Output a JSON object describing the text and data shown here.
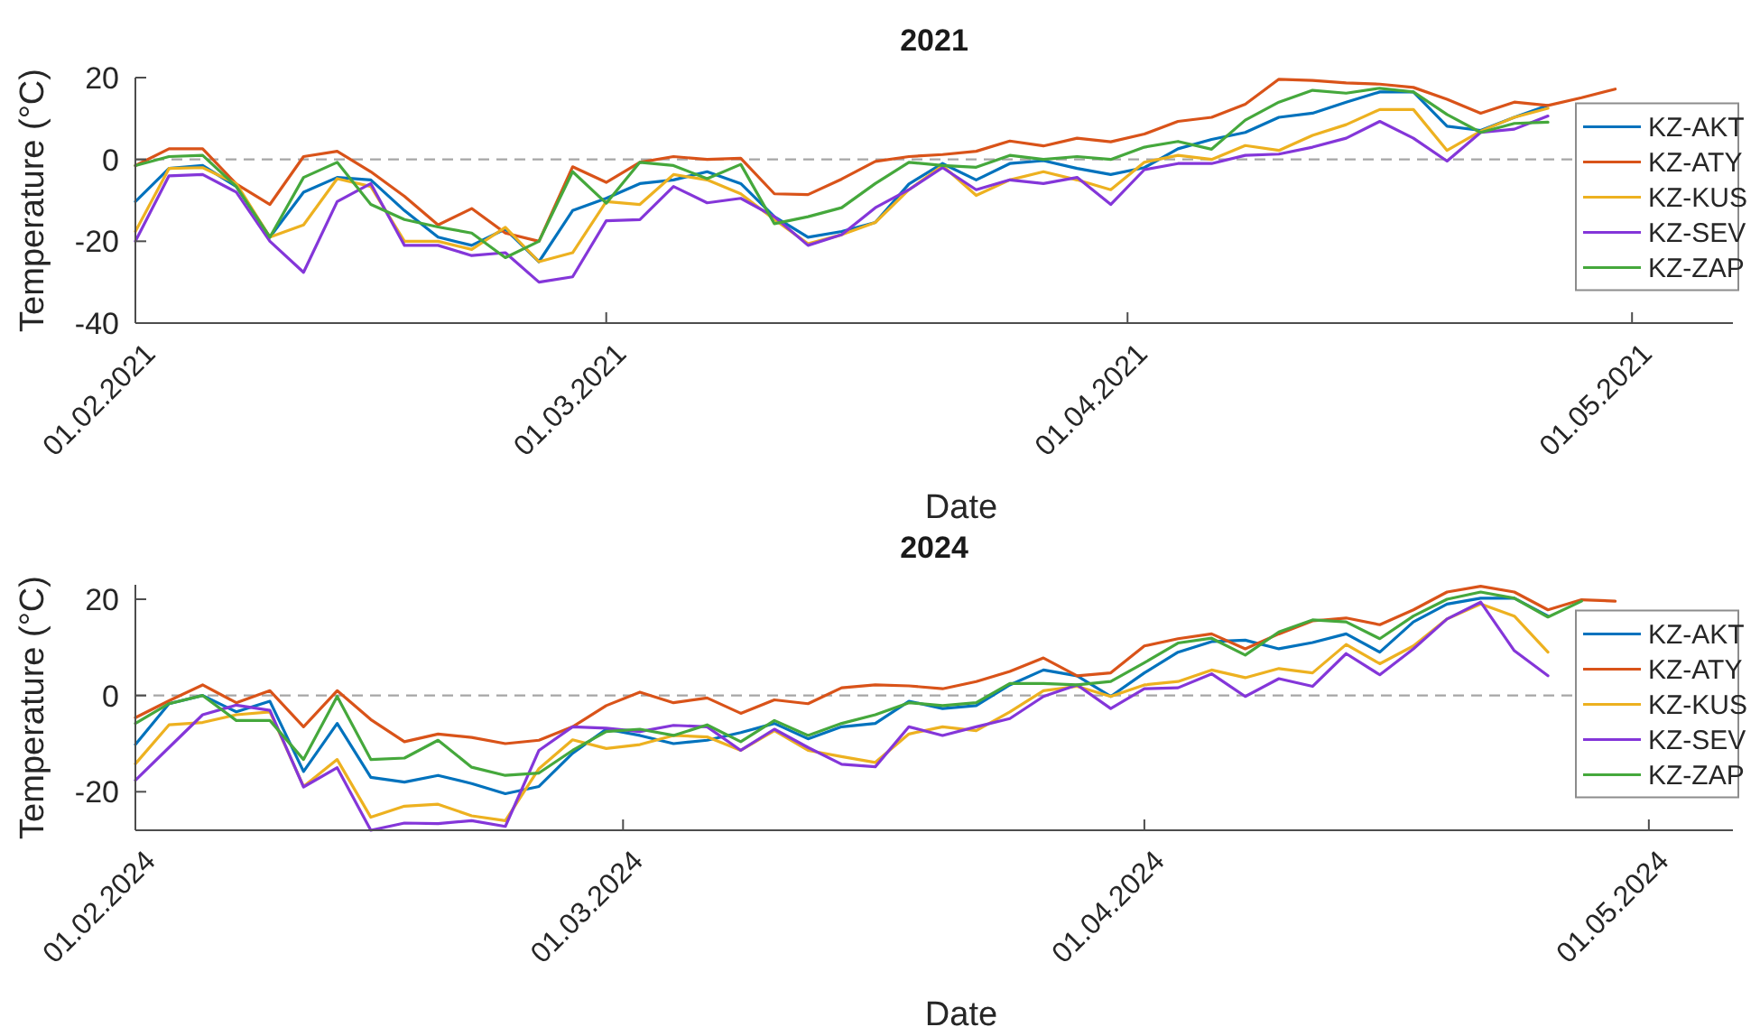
{
  "chart_data": [
    {
      "type": "line",
      "title": "2021",
      "xlabel": "Date",
      "ylabel": "Temperature (°C)",
      "x": [
        "2021-02-01",
        "2021-02-03",
        "2021-02-05",
        "2021-02-07",
        "2021-02-09",
        "2021-02-11",
        "2021-02-13",
        "2021-02-15",
        "2021-02-17",
        "2021-02-19",
        "2021-02-21",
        "2021-02-23",
        "2021-02-25",
        "2021-02-27",
        "2021-03-01",
        "2021-03-03",
        "2021-03-05",
        "2021-03-07",
        "2021-03-09",
        "2021-03-11",
        "2021-03-13",
        "2021-03-15",
        "2021-03-17",
        "2021-03-19",
        "2021-03-21",
        "2021-03-23",
        "2021-03-25",
        "2021-03-27",
        "2021-03-29",
        "2021-03-31",
        "2021-04-02",
        "2021-04-04",
        "2021-04-06",
        "2021-04-08",
        "2021-04-10",
        "2021-04-12",
        "2021-04-14",
        "2021-04-16",
        "2021-04-18",
        "2021-04-20",
        "2021-04-22",
        "2021-04-24",
        "2021-04-26",
        "2021-04-28",
        "2021-04-30"
      ],
      "series": [
        {
          "name": "KZ-AKT",
          "color": "#0072bd",
          "values": [
            -10.3,
            -2.2,
            -1.5,
            -6.6,
            -19,
            -8,
            -4.4,
            -5,
            -12.5,
            -19,
            -21,
            -17,
            -25,
            -12.5,
            -9.5,
            -5.9,
            -5,
            -3,
            -5.9,
            -14,
            -19,
            -17.6,
            -15.4,
            -6,
            -1,
            -5,
            -1,
            -0.3,
            -2.2,
            -3.7,
            -2,
            2.6,
            4.9,
            6.6,
            10.3,
            11.3,
            14,
            16.5,
            16.5,
            8.1,
            7.1,
            10.3,
            13.2,
            null,
            null
          ]
        },
        {
          "name": "KZ-ATY",
          "color": "#d95319",
          "values": [
            -1.5,
            2.6,
            2.6,
            -6,
            -11,
            0.7,
            2,
            -3,
            -9,
            -16,
            -12,
            -18,
            -20,
            -1.8,
            -5.6,
            -0.7,
            0.7,
            0,
            0.3,
            -8.4,
            -8.6,
            -4.8,
            -0.5,
            0.7,
            1.2,
            2,
            4.5,
            3.3,
            5.2,
            4.3,
            6.2,
            9.3,
            10.3,
            13.5,
            19.6,
            19.3,
            18.7,
            18.4,
            17.6,
            14.7,
            11.3,
            14,
            13.2,
            15.1,
            17.2
          ]
        },
        {
          "name": "KZ-KUS",
          "color": "#edb120",
          "values": [
            -17.6,
            -2.2,
            -2,
            -5.9,
            -19,
            -16,
            -4.7,
            -6.6,
            -20,
            -20,
            -22,
            -16.6,
            -25,
            -22.8,
            -10.3,
            -11,
            -3.7,
            -5,
            -8.4,
            -14.7,
            -20.6,
            -18.4,
            -15.4,
            -7.4,
            -1.5,
            -8.8,
            -5,
            -3,
            -5,
            -7.4,
            -0.7,
            1,
            0,
            3.4,
            2.2,
            5.9,
            8.5,
            12.2,
            12.2,
            2.2,
            6.9,
            10.3,
            12.5,
            null,
            null
          ]
        },
        {
          "name": "KZ-SEV",
          "color": "#8436d9",
          "values": [
            -20,
            -4,
            -3.7,
            -8,
            -20,
            -27.6,
            -10.3,
            -5.9,
            -21,
            -21,
            -23.5,
            -22.8,
            -30,
            -28.7,
            -15,
            -14.7,
            -6.6,
            -10.6,
            -9.5,
            -14,
            -21,
            -18.4,
            -11.8,
            -7.4,
            -2,
            -7.4,
            -5,
            -5.9,
            -4.4,
            -11,
            -2.5,
            -1,
            -1,
            1,
            1.3,
            3,
            5.2,
            9.3,
            5.2,
            -0.4,
            6.6,
            7.4,
            10.6,
            null,
            null
          ]
        },
        {
          "name": "KZ-ZAP",
          "color": "#45a83c",
          "values": [
            -1.5,
            0.7,
            1,
            -6.6,
            -19,
            -4.4,
            -0.7,
            -11,
            -14.7,
            -16.5,
            -18,
            -24,
            -20,
            -3,
            -10.7,
            -0.7,
            -1.5,
            -4.7,
            -1.2,
            -15.7,
            -14,
            -11.8,
            -5.9,
            -0.7,
            -1.5,
            -1.9,
            1,
            0,
            0.7,
            0,
            3,
            4.4,
            2.5,
            9.6,
            14,
            16.9,
            16.2,
            17.4,
            16.5,
            11,
            6.6,
            8.8,
            9.1,
            null,
            null
          ]
        }
      ],
      "xlim": [
        "2021-02-01",
        "2021-05-07"
      ],
      "xticks": [
        {
          "value": "2021-02-01",
          "label": "01.02.2021"
        },
        {
          "value": "2021-03-01",
          "label": "01.03.2021"
        },
        {
          "value": "2021-04-01",
          "label": "01.04.2021"
        },
        {
          "value": "2021-05-01",
          "label": "01.05.2021"
        }
      ],
      "ylim": [
        -40,
        20
      ],
      "yticks": [
        -40,
        -20,
        0,
        20
      ],
      "ref_lines": [
        {
          "axis": "y",
          "value": 0,
          "color": "#a6a6a6",
          "line_style": "dashed"
        }
      ],
      "legend": "right",
      "grid": false
    },
    {
      "type": "line",
      "title": "2024",
      "xlabel": "Date",
      "ylabel": "Temperature (°C)",
      "x": [
        "2024-02-01",
        "2024-02-03",
        "2024-02-05",
        "2024-02-07",
        "2024-02-09",
        "2024-02-11",
        "2024-02-13",
        "2024-02-15",
        "2024-02-17",
        "2024-02-19",
        "2024-02-21",
        "2024-02-23",
        "2024-02-25",
        "2024-02-27",
        "2024-02-29",
        "2024-03-02",
        "2024-03-04",
        "2024-03-06",
        "2024-03-08",
        "2024-03-10",
        "2024-03-12",
        "2024-03-14",
        "2024-03-16",
        "2024-03-18",
        "2024-03-20",
        "2024-03-22",
        "2024-03-24",
        "2024-03-26",
        "2024-03-28",
        "2024-03-30",
        "2024-04-01",
        "2024-04-03",
        "2024-04-05",
        "2024-04-07",
        "2024-04-09",
        "2024-04-11",
        "2024-04-13",
        "2024-04-15",
        "2024-04-17",
        "2024-04-19",
        "2024-04-21",
        "2024-04-23",
        "2024-04-25",
        "2024-04-27",
        "2024-04-29"
      ],
      "series": [
        {
          "name": "KZ-AKT",
          "color": "#0072bd",
          "values": [
            -10.2,
            -1.7,
            0,
            -3.4,
            -1.2,
            -15.8,
            -5.8,
            -17,
            -18,
            -16.6,
            -18.3,
            -20.4,
            -18.9,
            -12,
            -7,
            -8.3,
            -10,
            -9.3,
            -7.7,
            -5.8,
            -9,
            -6.5,
            -5.8,
            -1.2,
            -2.7,
            -2.1,
            2.2,
            5.3,
            4.1,
            -0.2,
            4.7,
            9,
            11.2,
            11.5,
            9.7,
            11,
            12.8,
            9,
            15.3,
            19,
            20.2,
            20.2,
            16.5,
            null,
            null
          ]
        },
        {
          "name": "KZ-ATY",
          "color": "#d95319",
          "values": [
            -4.6,
            -1.1,
            2.2,
            -1.5,
            1,
            -6.5,
            1,
            -5,
            -9.6,
            -8,
            -8.7,
            -10,
            -9.3,
            -6.5,
            -2.1,
            0.7,
            -1.5,
            -0.5,
            -3.7,
            -0.9,
            -1.7,
            1.6,
            2.2,
            2,
            1.4,
            2.9,
            5,
            7.8,
            4.1,
            4.7,
            10.3,
            11.8,
            12.8,
            9.7,
            12.8,
            15.5,
            16.1,
            14.7,
            17.8,
            21.5,
            22.7,
            21.5,
            17.8,
            19.9,
            19.6
          ]
        },
        {
          "name": "KZ-KUS",
          "color": "#edb120",
          "values": [
            -14.2,
            -6.1,
            -5.6,
            -4,
            -3.4,
            -18.9,
            -13.3,
            -25.3,
            -23,
            -22.6,
            -25,
            -26,
            -15.2,
            -9.2,
            -11,
            -10.2,
            -8.3,
            -8.6,
            -11.4,
            -7.3,
            -11.4,
            -12.7,
            -13.9,
            -8,
            -6.5,
            -7.3,
            -3.4,
            1,
            1.9,
            -0.2,
            2.2,
            2.9,
            5.3,
            3.7,
            5.6,
            4.7,
            10.6,
            6.6,
            10.3,
            15.9,
            19,
            16.5,
            9,
            null,
            null
          ]
        },
        {
          "name": "KZ-SEV",
          "color": "#8436d9",
          "values": [
            -17.6,
            -10.8,
            -4,
            -2,
            -3.1,
            -19,
            -15,
            -28,
            -26.5,
            -26.6,
            -26,
            -27.2,
            -11.4,
            -6.5,
            -6.8,
            -7.5,
            -6.2,
            -6.5,
            -11.4,
            -7,
            -10.8,
            -14.3,
            -14.8,
            -6.5,
            -8.3,
            -6.5,
            -4.8,
            -0.2,
            2.2,
            -2.7,
            1.4,
            1.6,
            4.5,
            -0.2,
            3.5,
            1.9,
            8.7,
            4.3,
            9.7,
            15.9,
            19.4,
            9.3,
            4.1,
            null,
            null
          ]
        },
        {
          "name": "KZ-ZAP",
          "color": "#45a83c",
          "values": [
            -5.8,
            -1.7,
            0,
            -5.2,
            -5.2,
            -13.3,
            -0.2,
            -13.3,
            -13,
            -9.3,
            -14.9,
            -16.6,
            -16.1,
            -11.4,
            -7.5,
            -7,
            -8.3,
            -6.1,
            -9.6,
            -5.2,
            -8.3,
            -5.8,
            -4,
            -1.5,
            -2.1,
            -1.5,
            2.5,
            2.5,
            2.2,
            2.9,
            6.8,
            10.9,
            11.9,
            8.4,
            13.2,
            15.7,
            15.3,
            11.8,
            16.5,
            20,
            21.5,
            20.2,
            16.3,
            19.6,
            null
          ]
        }
      ],
      "xlim": [
        "2024-02-01",
        "2024-05-06"
      ],
      "xticks": [
        {
          "value": "2024-02-01",
          "label": "01.02.2024"
        },
        {
          "value": "2024-03-01",
          "label": "01.03.2024"
        },
        {
          "value": "2024-04-01",
          "label": "01.04.2024"
        },
        {
          "value": "2024-05-01",
          "label": "01.05.2024"
        }
      ],
      "ylim": [
        -28,
        23
      ],
      "yticks": [
        -20,
        0,
        20
      ],
      "ref_lines": [
        {
          "axis": "y",
          "value": 0,
          "color": "#a6a6a6",
          "line_style": "dashed"
        }
      ],
      "legend": "right",
      "grid": false
    }
  ]
}
